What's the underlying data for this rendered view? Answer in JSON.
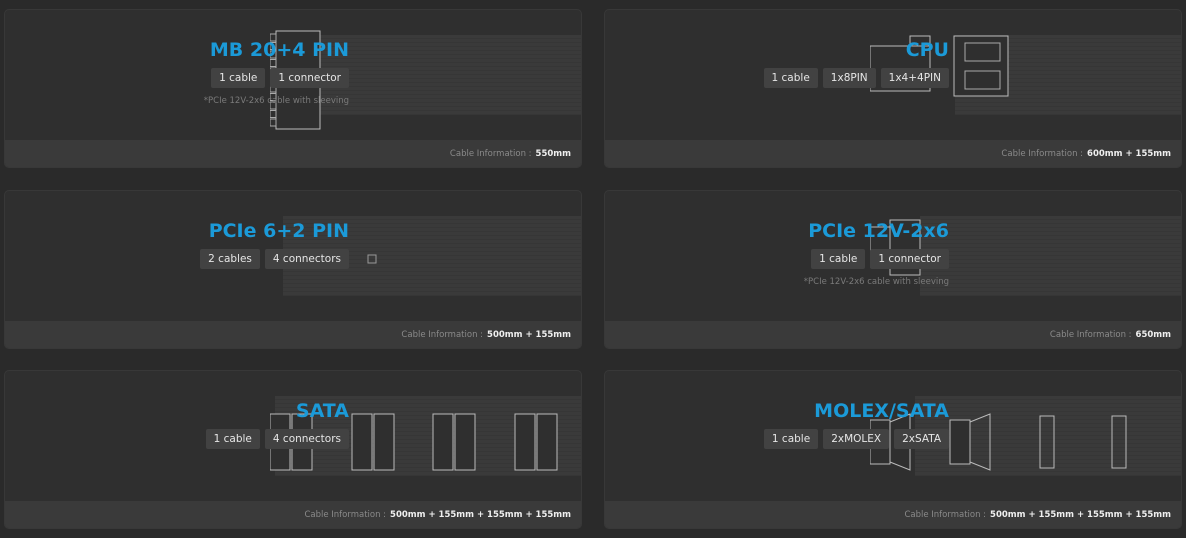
{
  "accent_color": "#1b9ad8",
  "footer_label": "Cable Information :",
  "cards": [
    {
      "title": "MB 20+4 PIN",
      "badges": [
        "1 cable",
        "1 connector"
      ],
      "note": "*PCIe 12V-2x6 cable with sleeving",
      "lengths": "550mm",
      "connector": "mb-24pin-icon"
    },
    {
      "title": "CPU",
      "badges": [
        "1 cable",
        "1x8PIN",
        "1x4+4PIN"
      ],
      "note": "",
      "lengths": "600mm + 155mm",
      "connector": "cpu-8pin-icon"
    },
    {
      "title": "PCIe 6+2 PIN",
      "badges": [
        "2 cables",
        "4 connectors"
      ],
      "note": "",
      "lengths": "500mm + 155mm",
      "connector": "broken-image-icon"
    },
    {
      "title": "PCIe 12V-2x6",
      "badges": [
        "1 cable",
        "1 connector"
      ],
      "note": "*PCIe 12V-2x6 cable with sleeving",
      "lengths": "650mm",
      "connector": "pcie-12v-2x6-icon"
    },
    {
      "title": "SATA",
      "badges": [
        "1 cable",
        "4 connectors"
      ],
      "note": "",
      "lengths": "500mm + 155mm + 155mm + 155mm",
      "connector": "sata-connector-icon"
    },
    {
      "title": "MOLEX/SATA",
      "badges": [
        "1 cable",
        "2xMOLEX",
        "2xSATA"
      ],
      "note": "",
      "lengths": "500mm + 155mm + 155mm + 155mm",
      "connector": "molex-sata-connector-icon"
    }
  ]
}
